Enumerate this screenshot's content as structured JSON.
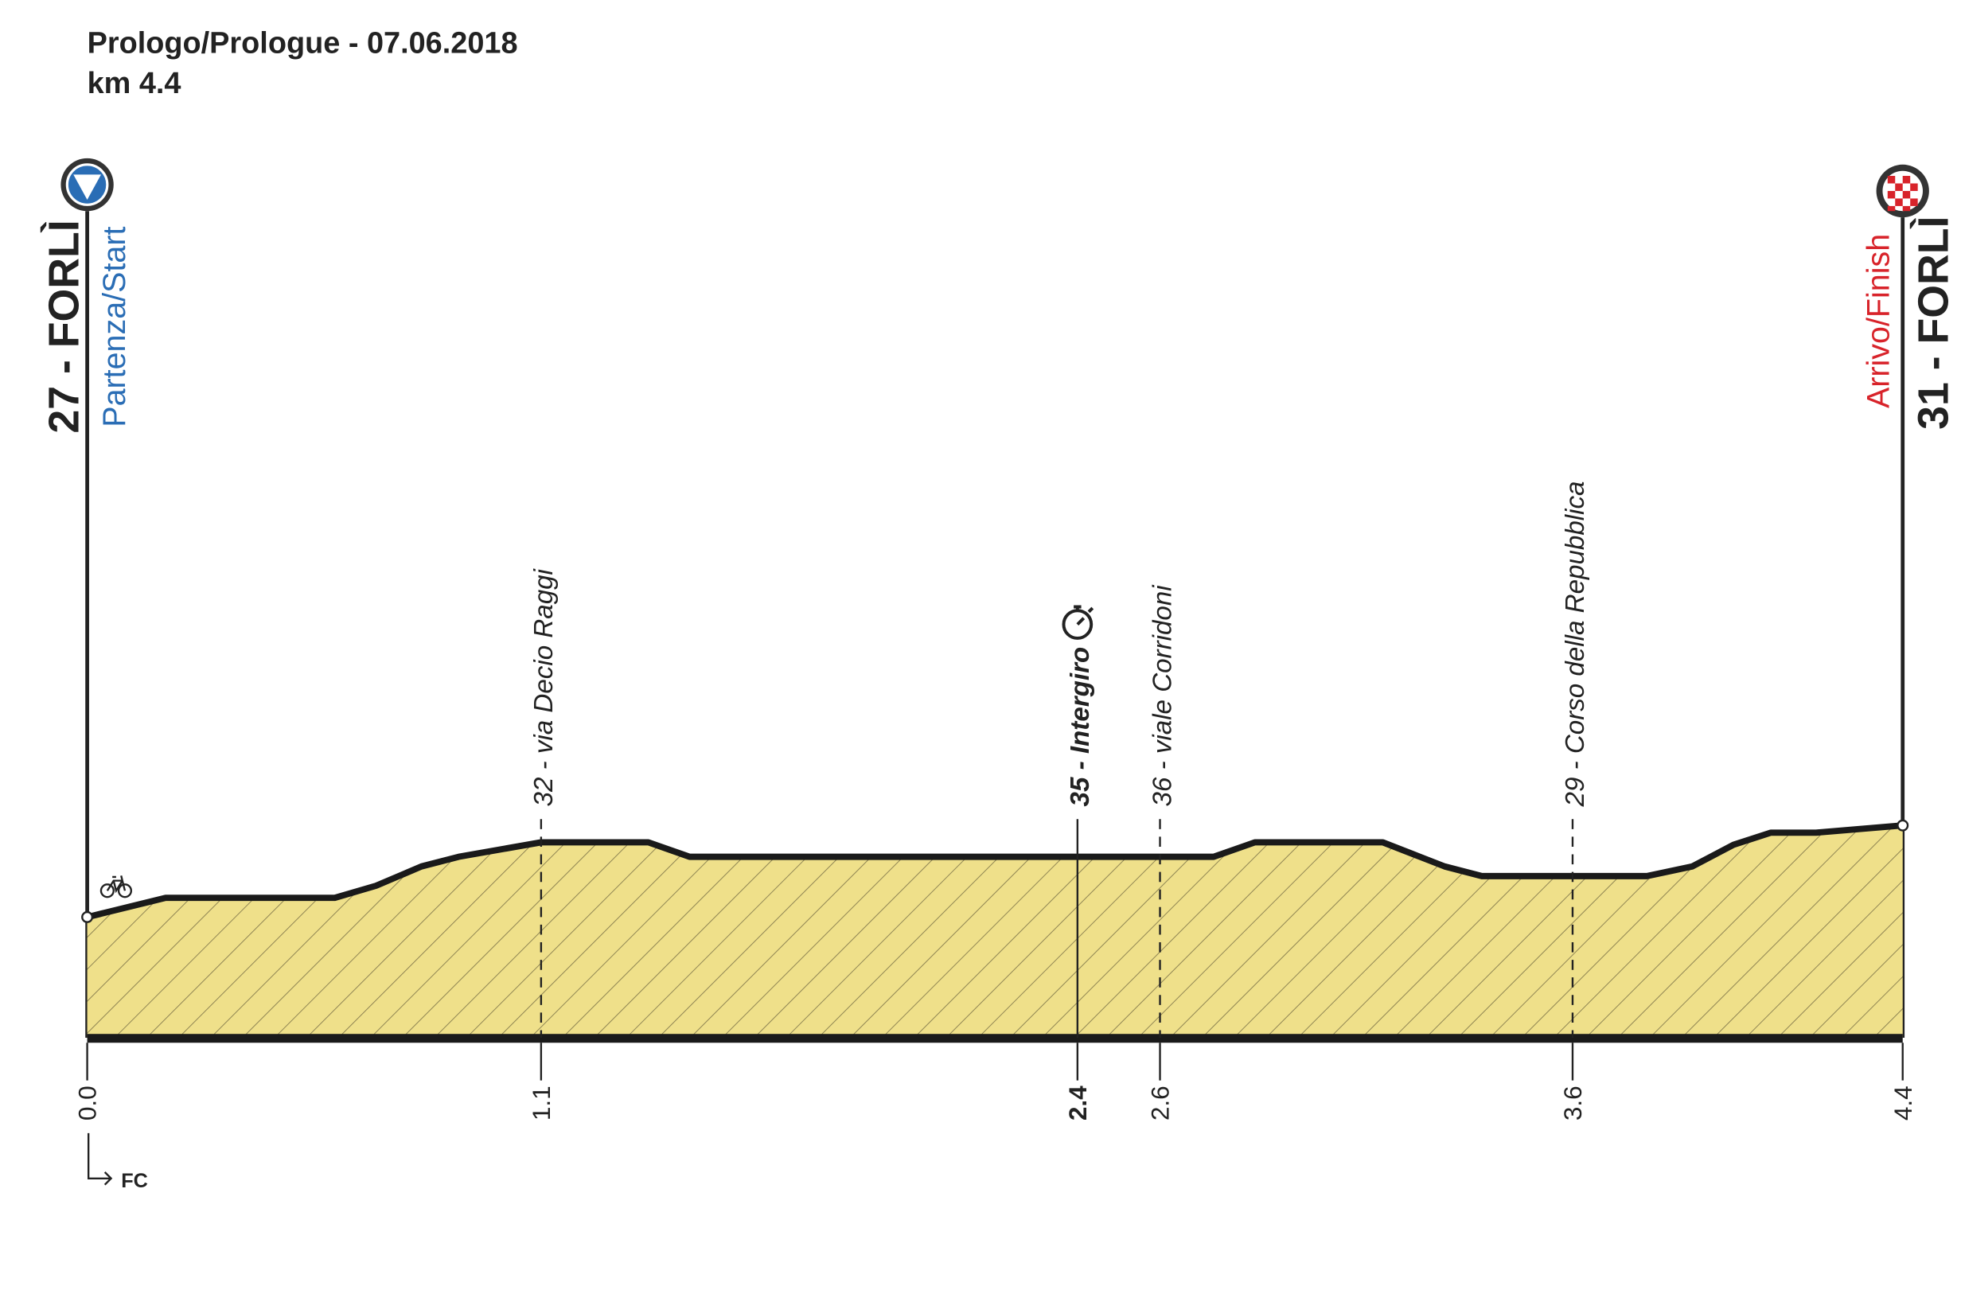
{
  "chart_data": {
    "type": "area",
    "title": "Prologo/Prologue - 07.06.2018",
    "subtitle": "km 4.4",
    "start": {
      "label": "27 - FORLÌ",
      "caption": "Partenza/Start"
    },
    "finish": {
      "label": "31 - FORLÌ",
      "caption": "Arrivo/Finish"
    },
    "x": [
      0,
      0.19,
      0.6,
      0.7,
      0.81,
      0.9,
      1.1,
      1.36,
      1.46,
      2.73,
      2.83,
      3.14,
      3.23,
      3.29,
      3.38,
      3.78,
      3.89,
      3.99,
      4.08,
      4.19,
      4.4
    ],
    "values": [
      27,
      27.8,
      27.8,
      28.3,
      29.1,
      29.5,
      30.1,
      30.1,
      29.5,
      29.5,
      30.1,
      30.1,
      29.5,
      29.1,
      28.7,
      28.7,
      29.1,
      30,
      30.5,
      30.5,
      30.8
    ],
    "color": "#efe08a",
    "xlim": [
      0,
      4.4
    ],
    "ylim": [
      22,
      57
    ],
    "xticks": [
      {
        "value": 0,
        "label": "0.0"
      },
      1.1,
      2.4,
      2.6,
      3.6,
      4.4
    ],
    "waypoints": [
      {
        "km": 1.1,
        "label": "32 - via Decio Raggi",
        "bold": false
      },
      {
        "km": 2.4,
        "label": "35 - Intergiro",
        "bold": true
      },
      {
        "km": 2.6,
        "label": "36 - viale Corridoni",
        "bold": false
      },
      {
        "km": 3.6,
        "label": "29 - Corso della Repubblica",
        "bold": false
      }
    ],
    "origin_label": "FC"
  }
}
